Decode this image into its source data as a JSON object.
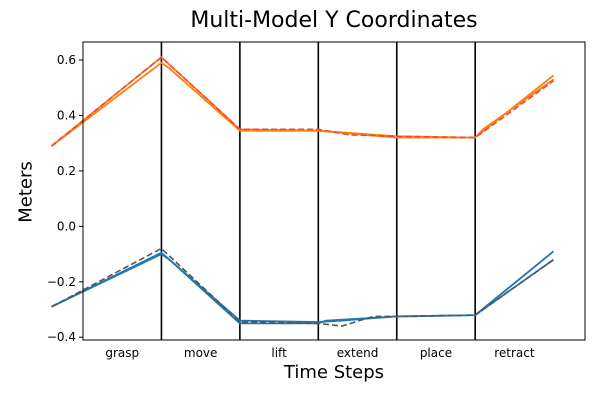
{
  "chart_data": {
    "type": "line",
    "title": "Multi-Model Y Coordinates",
    "xlabel": "Time Steps",
    "ylabel": "Meters",
    "ylim": [
      -0.41,
      0.665
    ],
    "xlim": [
      0,
      6.4
    ],
    "grid": false,
    "y_ticks": [
      0.6,
      0.4,
      0.2,
      0.0,
      -0.2,
      -0.4
    ],
    "y_tick_labels": [
      "0.6",
      "0.4",
      "0.2",
      "0.0",
      "−0.2",
      "−0.4"
    ],
    "phases": [
      "grasp",
      "move",
      "lift",
      "extend",
      "place",
      "retract"
    ],
    "phase_boundaries": [
      1,
      2,
      3,
      4,
      5
    ],
    "colors": {
      "orange_models": "#ff7f0e",
      "orange_dashed": "#f0483c",
      "blue_models": "#1f77b4",
      "blue_dashed": "#555555",
      "boundary": "#000000"
    },
    "series": [
      {
        "color_key": "orange_models",
        "style": "solid",
        "points": [
          [
            -0.4,
            0.29
          ],
          [
            1.0,
            0.61
          ],
          [
            2.0,
            0.35
          ],
          [
            3.0,
            0.345
          ],
          [
            4.0,
            0.325
          ],
          [
            5.0,
            0.32
          ],
          [
            6.0,
            0.545
          ]
        ]
      },
      {
        "color_key": "orange_models",
        "style": "solid",
        "points": [
          [
            -0.4,
            0.29
          ],
          [
            1.0,
            0.59
          ],
          [
            1.1,
            0.57
          ],
          [
            2.0,
            0.345
          ],
          [
            3.0,
            0.345
          ],
          [
            4.0,
            0.32
          ],
          [
            5.0,
            0.32
          ],
          [
            5.1,
            0.35
          ],
          [
            6.0,
            0.53
          ]
        ]
      },
      {
        "color_key": "orange_dashed",
        "style": "dashed",
        "points": [
          [
            -0.4,
            0.29
          ],
          [
            1.0,
            0.61
          ],
          [
            2.0,
            0.35
          ],
          [
            3.0,
            0.35
          ],
          [
            3.4,
            0.33
          ],
          [
            4.0,
            0.325
          ],
          [
            5.0,
            0.32
          ],
          [
            6.0,
            0.525
          ]
        ]
      },
      {
        "color_key": "blue_models",
        "style": "solid",
        "points": [
          [
            -0.4,
            -0.29
          ],
          [
            1.0,
            -0.095
          ],
          [
            2.0,
            -0.34
          ],
          [
            3.0,
            -0.345
          ],
          [
            3.3,
            -0.34
          ],
          [
            4.0,
            -0.325
          ],
          [
            5.0,
            -0.32
          ],
          [
            6.0,
            -0.09
          ]
        ]
      },
      {
        "color_key": "blue_models",
        "style": "solid",
        "points": [
          [
            -0.4,
            -0.29
          ],
          [
            1.0,
            -0.1
          ],
          [
            1.1,
            -0.12
          ],
          [
            2.0,
            -0.35
          ],
          [
            3.0,
            -0.35
          ],
          [
            3.1,
            -0.34
          ],
          [
            4.0,
            -0.325
          ],
          [
            4.2,
            -0.325
          ],
          [
            5.0,
            -0.32
          ],
          [
            5.1,
            -0.3
          ],
          [
            6.0,
            -0.12
          ]
        ]
      },
      {
        "color_key": "blue_dashed",
        "style": "dashed",
        "points": [
          [
            -0.4,
            -0.29
          ],
          [
            1.0,
            -0.08
          ],
          [
            2.0,
            -0.345
          ],
          [
            3.0,
            -0.35
          ],
          [
            3.3,
            -0.36
          ],
          [
            3.7,
            -0.325
          ],
          [
            4.0,
            -0.325
          ],
          [
            5.0,
            -0.32
          ],
          [
            6.0,
            -0.12
          ]
        ]
      }
    ]
  }
}
